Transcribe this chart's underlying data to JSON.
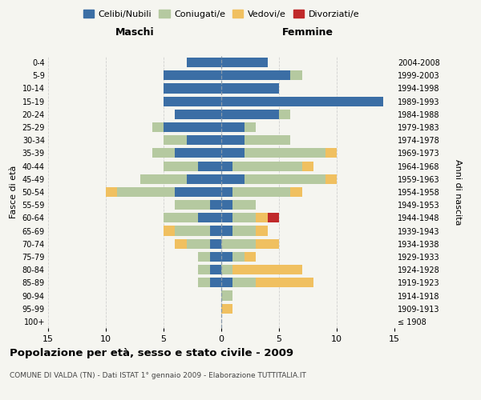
{
  "age_groups": [
    "100+",
    "95-99",
    "90-94",
    "85-89",
    "80-84",
    "75-79",
    "70-74",
    "65-69",
    "60-64",
    "55-59",
    "50-54",
    "45-49",
    "40-44",
    "35-39",
    "30-34",
    "25-29",
    "20-24",
    "15-19",
    "10-14",
    "5-9",
    "0-4"
  ],
  "birth_years": [
    "≤ 1908",
    "1909-1913",
    "1914-1918",
    "1919-1923",
    "1924-1928",
    "1929-1933",
    "1934-1938",
    "1939-1943",
    "1944-1948",
    "1949-1953",
    "1954-1958",
    "1959-1963",
    "1964-1968",
    "1969-1973",
    "1974-1978",
    "1979-1983",
    "1984-1988",
    "1989-1993",
    "1994-1998",
    "1999-2003",
    "2004-2008"
  ],
  "maschi": {
    "celibi": [
      0,
      0,
      0,
      1,
      1,
      1,
      1,
      1,
      2,
      1,
      4,
      3,
      2,
      4,
      3,
      5,
      4,
      5,
      5,
      5,
      3
    ],
    "coniugati": [
      0,
      0,
      0,
      1,
      1,
      1,
      2,
      3,
      3,
      3,
      5,
      4,
      3,
      2,
      2,
      1,
      0,
      0,
      0,
      0,
      0
    ],
    "vedovi": [
      0,
      0,
      0,
      0,
      0,
      0,
      1,
      1,
      0,
      0,
      1,
      0,
      0,
      0,
      0,
      0,
      0,
      0,
      0,
      0,
      0
    ],
    "divorziati": [
      0,
      0,
      0,
      0,
      0,
      0,
      0,
      0,
      0,
      0,
      0,
      0,
      0,
      0,
      0,
      0,
      0,
      0,
      0,
      0,
      0
    ]
  },
  "femmine": {
    "nubili": [
      0,
      0,
      0,
      1,
      0,
      1,
      0,
      1,
      1,
      1,
      1,
      2,
      1,
      2,
      2,
      2,
      5,
      14,
      5,
      6,
      4
    ],
    "coniugate": [
      0,
      0,
      1,
      2,
      1,
      1,
      3,
      2,
      2,
      2,
      5,
      7,
      6,
      7,
      4,
      1,
      1,
      0,
      0,
      1,
      0
    ],
    "vedove": [
      0,
      1,
      0,
      5,
      6,
      1,
      2,
      1,
      1,
      0,
      1,
      1,
      1,
      1,
      0,
      0,
      0,
      0,
      0,
      0,
      0
    ],
    "divorziate": [
      0,
      0,
      0,
      0,
      0,
      0,
      0,
      0,
      1,
      0,
      0,
      0,
      0,
      0,
      0,
      0,
      0,
      0,
      0,
      0,
      0
    ]
  },
  "colors": {
    "celibi": "#3b6ea5",
    "coniugati": "#b5c9a0",
    "vedovi": "#f0c060",
    "divorziati": "#c0292a"
  },
  "xlim": 15,
  "title": "Popolazione per età, sesso e stato civile - 2009",
  "subtitle": "COMUNE DI VALDA (TN) - Dati ISTAT 1° gennaio 2009 - Elaborazione TUTTITALIA.IT",
  "ylabel_left": "Fasce di età",
  "ylabel_right": "Anni di nascita",
  "xlabel_left": "Maschi",
  "xlabel_right": "Femmine",
  "legend_labels": [
    "Celibi/Nubili",
    "Coniugati/e",
    "Vedovi/e",
    "Divorziati/e"
  ],
  "bg_color": "#f5f5f0",
  "grid_color": "#cccccc"
}
